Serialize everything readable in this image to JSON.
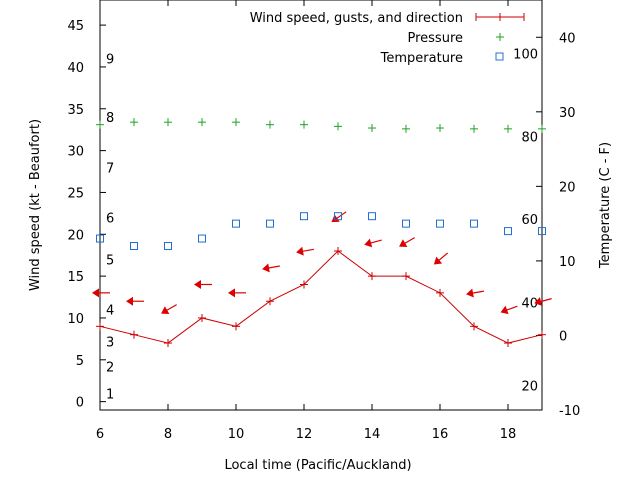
{
  "chart_data": {
    "type": "line",
    "xlabel": "Local time (Pacific/Auckland)",
    "ylabel_left": "Wind speed (kt - Beaufort)",
    "ylabel_right": "Temperature (C - F)",
    "xlim": [
      6,
      19
    ],
    "ylim_left": [
      -1,
      48
    ],
    "ylim_right": [
      -10,
      45
    ],
    "x_ticks": [
      6,
      8,
      10,
      12,
      14,
      16,
      18
    ],
    "y_left_ticks": [
      0,
      5,
      10,
      15,
      20,
      25,
      30,
      35,
      40,
      45
    ],
    "y_right_ticks": [
      -10,
      0,
      10,
      20,
      30,
      40
    ],
    "beaufort_labels": [
      {
        "label": "1",
        "knots": 1
      },
      {
        "label": "2",
        "knots": 4.2
      },
      {
        "label": "3",
        "knots": 7.2
      },
      {
        "label": "4",
        "knots": 11
      },
      {
        "label": "5",
        "knots": 17
      },
      {
        "label": "6",
        "knots": 22
      },
      {
        "label": "7",
        "knots": 28
      },
      {
        "label": "8",
        "knots": 34
      },
      {
        "label": "9",
        "knots": 41
      }
    ],
    "fahrenheit_labels": [
      {
        "label": "20",
        "celsius": -6.7
      },
      {
        "label": "40",
        "celsius": 4.4
      },
      {
        "label": "60",
        "celsius": 15.6
      },
      {
        "label": "80",
        "celsius": 26.7
      },
      {
        "label": "100",
        "celsius": 37.8
      }
    ],
    "legend": {
      "position": "top-right",
      "entries": [
        {
          "label": "Wind speed, gusts, and direction",
          "color": "#cc0000",
          "marker": "plus-line"
        },
        {
          "label": "Pressure",
          "color": "#22a022",
          "marker": "plus"
        },
        {
          "label": "Temperature",
          "color": "#2070d0",
          "marker": "square"
        }
      ]
    },
    "series": [
      {
        "name": "Wind speed, gusts, and direction",
        "color": "#cc0000",
        "axis": "left",
        "x": [
          6,
          7,
          8,
          9,
          10,
          11,
          12,
          13,
          14,
          15,
          16,
          17,
          18,
          19
        ],
        "values": [
          9,
          8,
          7,
          10,
          9,
          12,
          14,
          18,
          15,
          15,
          13,
          9,
          7,
          8
        ]
      },
      {
        "name": "Wind direction arrows",
        "color": "#dd0000",
        "axis": "left",
        "x": [
          6,
          7,
          8,
          9,
          10,
          11,
          12,
          13,
          14,
          15,
          16,
          17,
          18,
          19
        ],
        "values": [
          13,
          12,
          11,
          14,
          13,
          16,
          18,
          22,
          19,
          19,
          17,
          13,
          11,
          12
        ],
        "direction_deg": [
          90,
          90,
          60,
          90,
          90,
          80,
          80,
          55,
          75,
          60,
          50,
          80,
          70,
          75
        ]
      },
      {
        "name": "Pressure",
        "color": "#22a022",
        "axis": "left",
        "x": [
          6,
          7,
          8,
          9,
          10,
          11,
          12,
          13,
          14,
          15,
          16,
          17,
          18,
          19
        ],
        "values": [
          33.1,
          33.4,
          33.4,
          33.4,
          33.4,
          33.1,
          33.1,
          32.9,
          32.7,
          32.6,
          32.7,
          32.6,
          32.6,
          32.6
        ]
      },
      {
        "name": "Temperature",
        "color": "#2070d0",
        "axis": "right",
        "x": [
          6,
          7,
          8,
          9,
          10,
          11,
          12,
          13,
          14,
          15,
          16,
          17,
          18,
          19
        ],
        "values": [
          13,
          12,
          12,
          13,
          15,
          15,
          16,
          16,
          16,
          15,
          15,
          15,
          14,
          14
        ]
      }
    ]
  }
}
